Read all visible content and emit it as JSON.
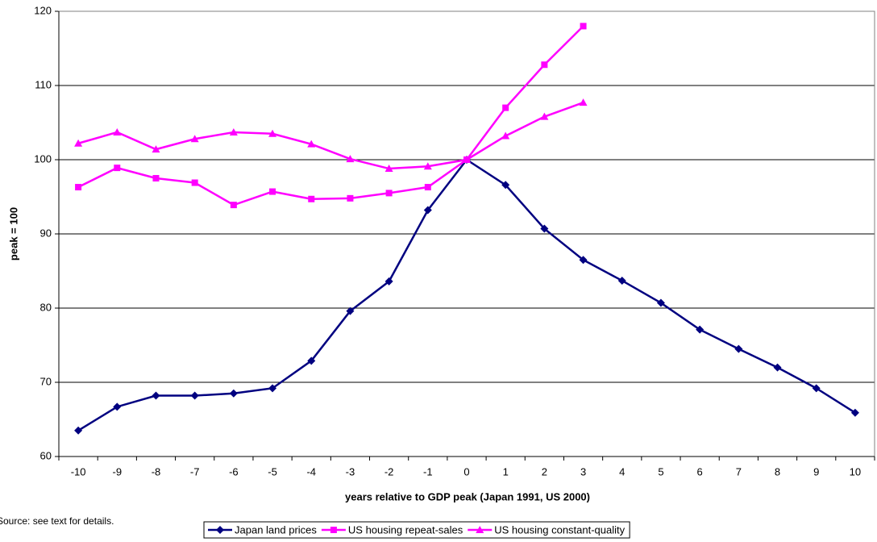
{
  "chart_data": {
    "type": "line",
    "y_label": "peak = 100",
    "x_label": "years relative to GDP peak (Japan 1991, US 2000)",
    "note": "Source: see text for details.",
    "categories": [
      -10,
      -9,
      -8,
      -7,
      -6,
      -5,
      -4,
      -3,
      -2,
      -1,
      0,
      1,
      2,
      3,
      4,
      5,
      6,
      7,
      8,
      9,
      10
    ],
    "ylim": [
      60,
      120
    ],
    "yticks": [
      60,
      70,
      80,
      90,
      100,
      110,
      120
    ],
    "grid": true,
    "legend": "bottom",
    "series": [
      {
        "name": "Japan land prices",
        "color": "#000080",
        "marker": "diamond",
        "values": [
          63.5,
          66.7,
          68.2,
          68.2,
          68.5,
          69.2,
          72.9,
          79.6,
          83.6,
          93.2,
          100,
          96.6,
          90.7,
          86.5,
          83.7,
          80.7,
          77.1,
          74.5,
          72.0,
          69.2,
          65.9
        ]
      },
      {
        "name": "US housing repeat-sales",
        "color": "#ff00ff",
        "marker": "square",
        "values": [
          96.3,
          98.9,
          97.5,
          96.9,
          93.9,
          95.7,
          94.7,
          94.8,
          95.5,
          96.3,
          100,
          107.0,
          112.8,
          118.0,
          null,
          null,
          null,
          null,
          null,
          null,
          null
        ]
      },
      {
        "name": "US housing constant-quality",
        "color": "#ff00ff",
        "marker": "triangle",
        "values": [
          102.2,
          103.7,
          101.4,
          102.8,
          103.7,
          103.5,
          102.1,
          100.1,
          98.8,
          99.1,
          100,
          103.2,
          105.8,
          107.7,
          null,
          null,
          null,
          null,
          null,
          null,
          null
        ]
      }
    ]
  }
}
